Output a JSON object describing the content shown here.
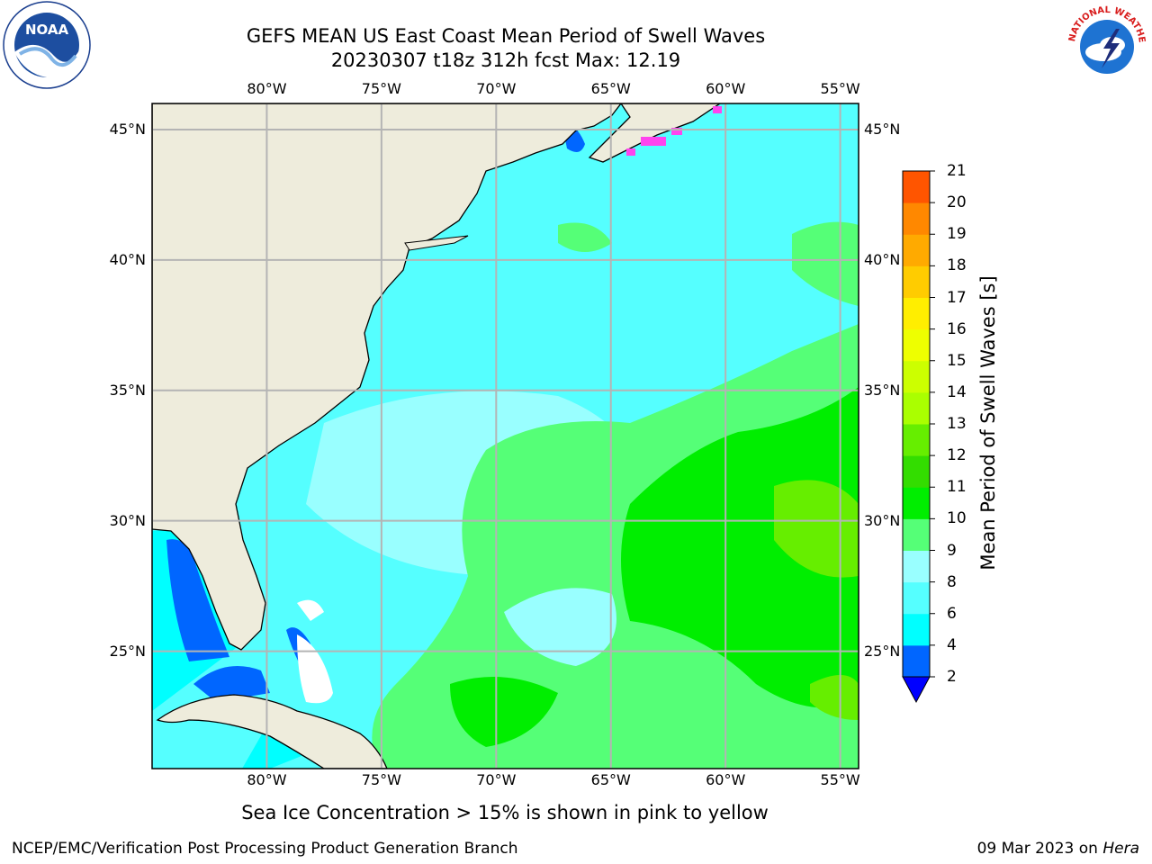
{
  "title": {
    "line1": "GEFS MEAN US East Coast Mean Period of Swell Waves",
    "line2": "20230307 t18z 312h fcst   Max: 12.19"
  },
  "map": {
    "lon_labels": [
      "80°W",
      "75°W",
      "70°W",
      "65°W",
      "60°W",
      "55°W"
    ],
    "lat_labels": [
      "45°N",
      "40°N",
      "35°N",
      "30°N",
      "25°N"
    ],
    "lon_range": [
      -85,
      -54.2
    ],
    "lat_range": [
      20.5,
      46
    ],
    "land_color": "#eeecdc",
    "grid_color": "#b4b4b4"
  },
  "colorbar": {
    "title": "Mean Period of Swell Waves [s]",
    "labels": [
      "2",
      "4",
      "6",
      "8",
      "9",
      "10",
      "11",
      "12",
      "13",
      "14",
      "15",
      "16",
      "17",
      "18",
      "19",
      "20",
      "21"
    ],
    "colors": [
      "#0066ff",
      "#00ffff",
      "#55ffff",
      "#99ffff",
      "#55ff77",
      "#00ee00",
      "#33dd00",
      "#66ee00",
      "#aaff00",
      "#ccff00",
      "#eeff00",
      "#ffee00",
      "#ffcc00",
      "#ffaa00",
      "#ff8800",
      "#ff5500",
      "#ff2200",
      "#ff0000"
    ],
    "extend_color": "#0000ff"
  },
  "ice_note": "Sea Ice Concentration > 15% is shown in pink to yellow",
  "footer": {
    "left": "NCEP/EMC/Verification Post Processing Product Generation Branch",
    "right_date": "09 Mar 2023 on",
    "right_machine": "Hera"
  },
  "logos": {
    "noaa_text": "NOAA",
    "nws_text": "NATIONAL WEATHER SERVICE"
  }
}
